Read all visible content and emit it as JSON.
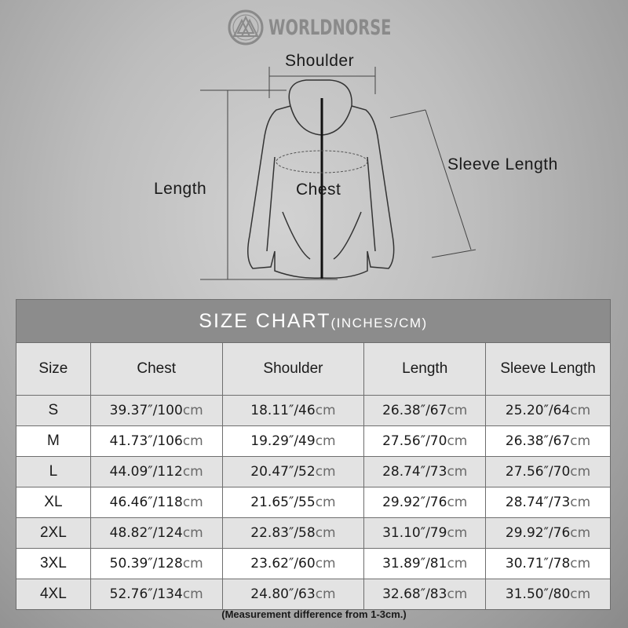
{
  "brand": {
    "name": "WORLDNORSE"
  },
  "diagram": {
    "shoulder": "Shoulder",
    "length": "Length",
    "chest": "Chest",
    "sleeve": "Sleeve Length"
  },
  "table": {
    "title": "SIZE CHART",
    "title_units": "(INCHES/CM)",
    "unit": "cm",
    "headers": [
      "Size",
      "Chest",
      "Shoulder",
      "Length",
      "Sleeve Length"
    ],
    "rows": [
      {
        "size": "S",
        "chest": "39.37″/100",
        "shoulder": "18.11″/46",
        "length": "26.38″/67",
        "sleeve": "25.20″/64"
      },
      {
        "size": "M",
        "chest": "41.73″/106",
        "shoulder": "19.29″/49",
        "length": "27.56″/70",
        "sleeve": "26.38″/67"
      },
      {
        "size": "L",
        "chest": "44.09″/112",
        "shoulder": "20.47″/52",
        "length": "28.74″/73",
        "sleeve": "27.56″/70"
      },
      {
        "size": "XL",
        "chest": "46.46″/118",
        "shoulder": "21.65″/55",
        "length": "29.92″/76",
        "sleeve": "28.74″/73"
      },
      {
        "size": "2XL",
        "chest": "48.82″/124",
        "shoulder": "22.83″/58",
        "length": "31.10″/79",
        "sleeve": "29.92″/76"
      },
      {
        "size": "3XL",
        "chest": "50.39″/128",
        "shoulder": "23.62″/60",
        "length": "31.89″/81",
        "sleeve": "30.71″/78"
      },
      {
        "size": "4XL",
        "chest": "52.76″/134",
        "shoulder": "24.80″/63",
        "length": "32.68″/83",
        "sleeve": "31.50″/80"
      }
    ]
  },
  "note": "(Measurement difference from 1-3cm.)"
}
